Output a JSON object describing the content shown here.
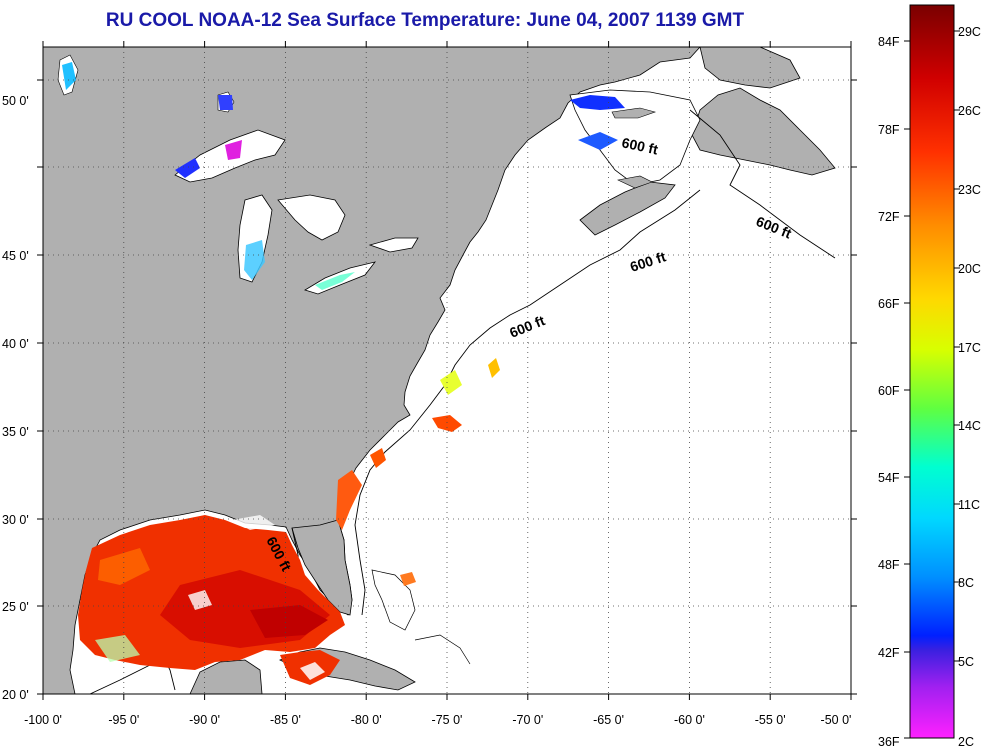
{
  "title": "RU COOL  NOAA-12  Sea Surface Temperature:  June 04, 2007 1139 GMT",
  "map": {
    "lon_labels": [
      "-100 0'",
      "-95 0'",
      "-90 0'",
      "-85 0'",
      "-80 0'",
      "-75 0'",
      "-70 0'",
      "-65 0'",
      "-60 0'",
      "-55 0'",
      "-50 0'"
    ],
    "lat_labels": [
      "20 0'",
      "25 0'",
      "30 0'",
      "35 0'",
      "40 0'",
      "45 0'",
      "50 0'"
    ],
    "lon_range": [
      -100,
      -50
    ],
    "lat_range": [
      20,
      52.5
    ],
    "contour_labels": [
      "600 ft",
      "600 ft",
      "600 ft",
      "600 ft",
      "600 ft"
    ],
    "colors": {
      "land": "#b0b0b0",
      "ocean": "#ffffff",
      "coast": "#000000",
      "grid": "#444444"
    }
  },
  "colorbar": {
    "fahrenheit_labels": [
      "84F",
      "78F",
      "72F",
      "66F",
      "60F",
      "54F",
      "48F",
      "42F",
      "36F"
    ],
    "celsius_labels": [
      "29C",
      "26C",
      "23C",
      "20C",
      "17C",
      "14C",
      "11C",
      "8C",
      "5C",
      "2C"
    ],
    "range_c": [
      2,
      30
    ],
    "colors_top_to_bottom": [
      "#7a0000",
      "#d40000",
      "#ff3a00",
      "#ff8a00",
      "#ffd000",
      "#f0ff00",
      "#90ff20",
      "#20ffb0",
      "#00ffff",
      "#00a0ff",
      "#0040ff",
      "#1010ff",
      "#8020ff",
      "#ff20ff"
    ]
  }
}
